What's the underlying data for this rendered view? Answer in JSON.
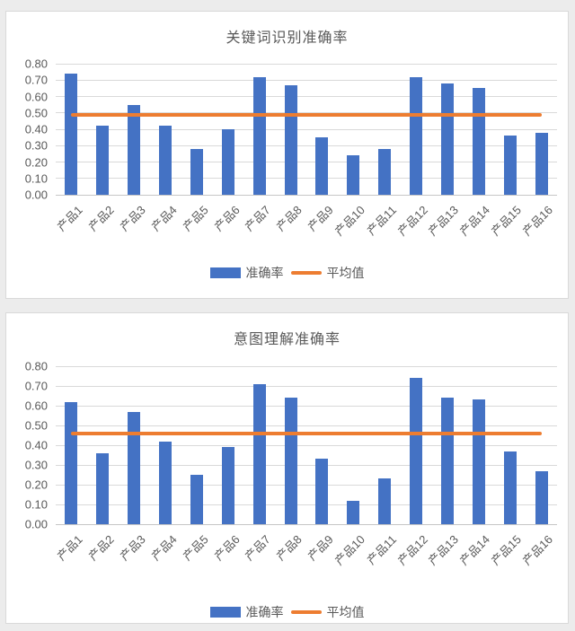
{
  "page": {
    "background_color": "#ececec",
    "panel_background": "#ffffff",
    "panel_border_color": "#d9d9d9"
  },
  "colors": {
    "bar_fill": "#4472c4",
    "average_line": "#ed7d31",
    "title_text": "#595959",
    "axis_text": "#595959",
    "gridline": "#d9d9d9"
  },
  "chart_data": [
    {
      "type": "bar",
      "title": "关键词识别准确率",
      "categories": [
        "产品1",
        "产品2",
        "产品3",
        "产品4",
        "产品5",
        "产品6",
        "产品7",
        "产品8",
        "产品9",
        "产品10",
        "产品11",
        "产品12",
        "产品13",
        "产品14",
        "产品15",
        "产品16"
      ],
      "series": [
        {
          "name": "准确率",
          "type": "bar",
          "color": "#4472c4",
          "values": [
            0.74,
            0.42,
            0.55,
            0.42,
            0.28,
            0.4,
            0.72,
            0.67,
            0.35,
            0.24,
            0.28,
            0.72,
            0.68,
            0.65,
            0.36,
            0.38
          ]
        },
        {
          "name": "平均值",
          "type": "line",
          "color": "#ed7d31",
          "value": 0.49
        }
      ],
      "ylim": [
        0,
        0.8
      ],
      "yticks": [
        "0.00",
        "0.10",
        "0.20",
        "0.30",
        "0.40",
        "0.50",
        "0.60",
        "0.70",
        "0.80"
      ],
      "grid": true,
      "legend_position": "bottom",
      "xlabel": "",
      "ylabel": ""
    },
    {
      "type": "bar",
      "title": "意图理解准确率",
      "categories": [
        "产品1",
        "产品2",
        "产品3",
        "产品4",
        "产品5",
        "产品6",
        "产品7",
        "产品8",
        "产品9",
        "产品10",
        "产品11",
        "产品12",
        "产品13",
        "产品14",
        "产品15",
        "产品16"
      ],
      "series": [
        {
          "name": "准确率",
          "type": "bar",
          "color": "#4472c4",
          "values": [
            0.62,
            0.36,
            0.57,
            0.42,
            0.25,
            0.39,
            0.71,
            0.64,
            0.33,
            0.12,
            0.23,
            0.74,
            0.64,
            0.63,
            0.37,
            0.27
          ]
        },
        {
          "name": "平均值",
          "type": "line",
          "color": "#ed7d31",
          "value": 0.46
        }
      ],
      "ylim": [
        0,
        0.8
      ],
      "yticks": [
        "0.00",
        "0.10",
        "0.20",
        "0.30",
        "0.40",
        "0.50",
        "0.60",
        "0.70",
        "0.80"
      ],
      "grid": true,
      "legend_position": "bottom",
      "xlabel": "",
      "ylabel": ""
    }
  ]
}
